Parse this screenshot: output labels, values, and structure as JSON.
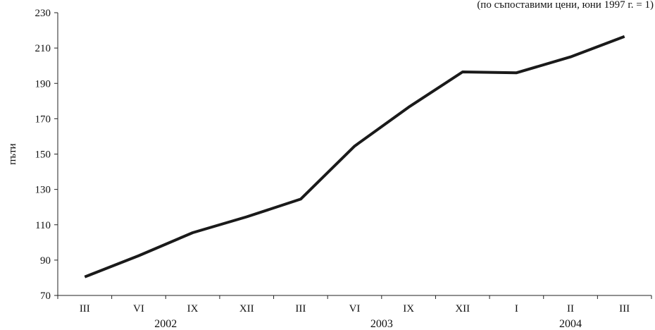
{
  "chart_data": {
    "type": "line",
    "subtitle": "(по съпоставими цени, юни 1997 г. = 1)",
    "xlabel": "",
    "ylabel": "пъти",
    "ylim": [
      70,
      230
    ],
    "yticks": [
      70,
      90,
      110,
      130,
      150,
      170,
      190,
      210,
      230
    ],
    "categories": [
      "III",
      "VI",
      "IX",
      "XII",
      "III",
      "VI",
      "IX",
      "XII",
      "I",
      "II",
      "III"
    ],
    "year_groups": [
      {
        "label": "2002",
        "start": 0,
        "end": 3
      },
      {
        "label": "2003",
        "start": 4,
        "end": 7
      },
      {
        "label": "2004",
        "start": 8,
        "end": 10
      }
    ],
    "series": [
      {
        "values": [
          80.5,
          92.5,
          105.5,
          114.5,
          124.5,
          154.5,
          176.5,
          196.5,
          196.0,
          205.0,
          216.5
        ],
        "color": "#1a1a1a"
      }
    ],
    "grid": false,
    "legend": "none"
  }
}
